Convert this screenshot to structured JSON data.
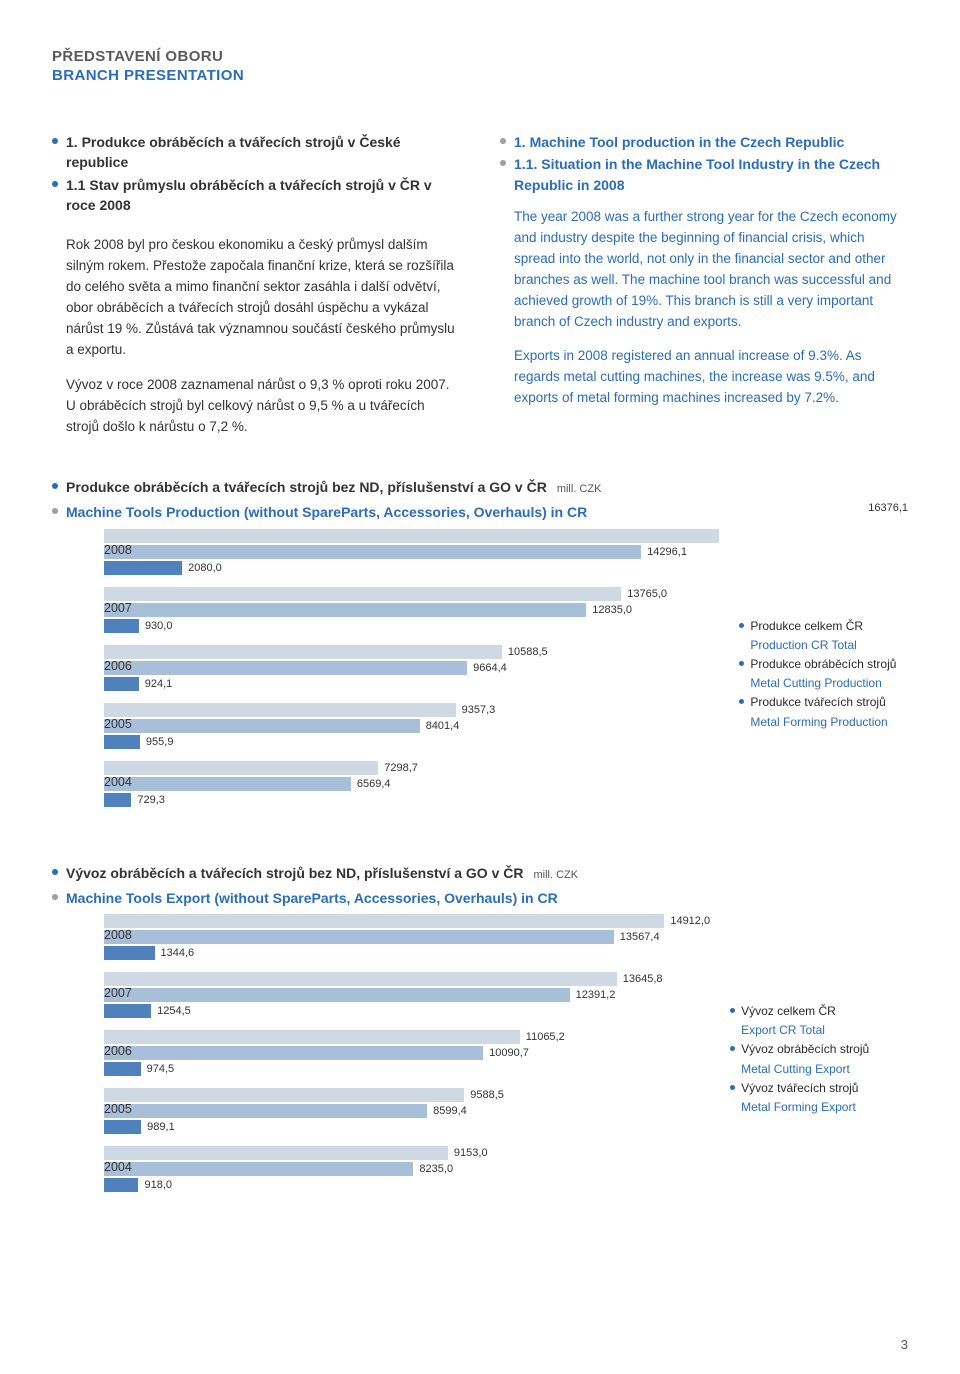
{
  "header": {
    "cz": "PŘEDSTAVENÍ OBORU",
    "en": "BRANCH PRESENTATION"
  },
  "left": {
    "h1": "1. Produkce obráběcích a tvářecích strojů v České republice",
    "h2": "1.1 Stav průmyslu obráběcích a tvářecích strojů v ČR v roce 2008",
    "p1": "Rok 2008 byl pro českou ekonomiku a český průmysl dalším silným rokem. Přestože započala finanční krize, která se rozšířila do celého světa a mimo finanční sektor zasáhla i další odvětví, obor obráběcích a tvářecích strojů dosáhl úspěchu a vykázal nárůst 19 %. Zůstává tak významnou součástí českého průmyslu a exportu.",
    "p2": "Vývoz v roce 2008 zaznamenal nárůst o 9,3 % oproti roku 2007. U obráběcích strojů byl celkový nárůst o 9,5 % a u tvářecích strojů došlo k nárůstu o 7,2 %."
  },
  "right": {
    "h1": "1. Machine Tool production in the Czech Republic",
    "h2": "1.1. Situation in the Machine Tool Industry in the Czech Republic in 2008",
    "p1": "The year 2008 was a further strong year for the Czech economy and industry despite the beginning of financial crisis, which spread into the world, not only in the financial sector and other branches as well. The machine tool branch was successful and achieved growth of 19%. This branch is still a very important branch of Czech industry and exports.",
    "p2": "Exports in 2008 registered an annual increase of 9.3%. As regards metal cutting machines, the increase was 9.5%, and exports of metal forming machines increased by 7.2%."
  },
  "chart1": {
    "title_cz": "Produkce obráběcích a tvářecích strojů bez ND, příslušenství a GO v ČR",
    "title_en": "Machine Tools Production (without SpareParts, Accessories, Overhauls) in CR",
    "unit": "mill. CZK",
    "max": 16500,
    "years": [
      {
        "year": "2008",
        "total": "16376,1",
        "cutting": "14296,1",
        "forming": "2080,0"
      },
      {
        "year": "2007",
        "total": "13765,0",
        "cutting": "12835,0",
        "forming": "930,0"
      },
      {
        "year": "2006",
        "total": "10588,5",
        "cutting": "9664,4",
        "forming": "924,1"
      },
      {
        "year": "2005",
        "total": "9357,3",
        "cutting": "8401,4",
        "forming": "955,9"
      },
      {
        "year": "2004",
        "total": "7298,7",
        "cutting": "6569,4",
        "forming": "729,3"
      }
    ],
    "legend": {
      "l1_cz": "Produkce celkem ČR",
      "l1_en": "Production CR Total",
      "l2_cz": "Produkce obráběcích strojů",
      "l2_en": "Metal Cutting Production",
      "l3_cz": "Produkce tvářecích strojů",
      "l3_en": "Metal Forming Production"
    },
    "colors": {
      "total": "#cfd9e4",
      "cutting": "#a8bfd9",
      "forming": "#4f81bd"
    }
  },
  "chart2": {
    "title_cz": "Vývoz obráběcích a tvářecích strojů bez ND, příslušenství a GO v ČR",
    "title_en": "Machine Tools Export (without SpareParts, Accessories, Overhauls) in CR",
    "unit": "mill. CZK",
    "max": 16500,
    "years": [
      {
        "year": "2008",
        "total": "14912,0",
        "cutting": "13567,4",
        "forming": "1344,6"
      },
      {
        "year": "2007",
        "total": "13645,8",
        "cutting": "12391,2",
        "forming": "1254,5"
      },
      {
        "year": "2006",
        "total": "11065,2",
        "cutting": "10090,7",
        "forming": "974,5"
      },
      {
        "year": "2005",
        "total": "9588,5",
        "cutting": "8599,4",
        "forming": "989,1"
      },
      {
        "year": "2004",
        "total": "9153,0",
        "cutting": "8235,0",
        "forming": "918,0"
      }
    ],
    "legend": {
      "l1_cz": "Vývoz celkem ČR",
      "l1_en": "Export CR Total",
      "l2_cz": "Vývoz obráběcích strojů",
      "l2_en": "Metal Cutting Export",
      "l3_cz": "Vývoz tvářecích strojů",
      "l3_en": "Metal Forming Export"
    },
    "colors": {
      "total": "#cfd9e4",
      "cutting": "#a8bfd9",
      "forming": "#4f81bd"
    }
  },
  "page_number": "3"
}
